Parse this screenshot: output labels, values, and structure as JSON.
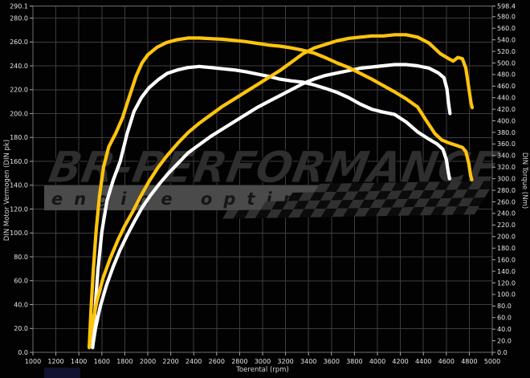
{
  "watermark": {
    "line1": "BR-PERFORMANCE",
    "line2": "engine optimisation"
  },
  "colors": {
    "background": "#020202",
    "plot_background": "#000000",
    "gridline": "#3d3d3d",
    "plot_border": "#6e6e6e",
    "tick_text": "#e6e6e6",
    "curve_tuned": "#FFC40D",
    "curve_stock": "#FFFFFF",
    "watermark_text": "#2e2e2e",
    "watermark_band": "#4a4a4a",
    "checker_light": "#303030",
    "checker_dark": "#0b0b0b",
    "artifact_blue": "#141438"
  },
  "chart_data": {
    "type": "line",
    "title": "",
    "xlabel": "Toerental (rpm)",
    "ylabel_left": "DIN Motor Vermogen (DIN pk)",
    "ylabel_right": "DIN Torque (Nm)",
    "grid": true,
    "legend": "none",
    "x_range": [
      1000,
      5000
    ],
    "y_left_range": [
      0,
      290.1
    ],
    "y_right_range": [
      0,
      598.4
    ],
    "x_ticks": [
      "1000",
      "1200",
      "1400",
      "1600",
      "1800",
      "2000",
      "2200",
      "2400",
      "2600",
      "2800",
      "3000",
      "3200",
      "3400",
      "3600",
      "3800",
      "4000",
      "4200",
      "4400",
      "4600",
      "4800",
      "5000"
    ],
    "y_left_ticks": [
      "0.0",
      "20.0",
      "40.0",
      "60.0",
      "80.0",
      "100.0",
      "120.0",
      "140.0",
      "160.0",
      "180.0",
      "200.0",
      "220.0",
      "240.0",
      "260.0",
      "280.0",
      "290.1"
    ],
    "y_right_ticks": [
      "0.0",
      "20.0",
      "40.0",
      "60.0",
      "80.0",
      "100.0",
      "120.0",
      "140.0",
      "160.0",
      "180.0",
      "200.0",
      "220.0",
      "240.0",
      "260.0",
      "280.0",
      "300.0",
      "320.0",
      "340.0",
      "360.0",
      "380.0",
      "400.0",
      "420.0",
      "440.0",
      "460.0",
      "480.0",
      "500.0",
      "520.0",
      "540.0",
      "560.0",
      "580.0",
      "598.4"
    ],
    "series": [
      {
        "name": "torque-stock-white",
        "axis": "right",
        "color": "#FFFFFF",
        "points": [
          [
            1520,
            8
          ],
          [
            1540,
            70
          ],
          [
            1565,
            140
          ],
          [
            1600,
            208
          ],
          [
            1645,
            262
          ],
          [
            1700,
            298
          ],
          [
            1760,
            330
          ],
          [
            1820,
            378
          ],
          [
            1880,
            416
          ],
          [
            1945,
            440
          ],
          [
            2010,
            457
          ],
          [
            2090,
            471
          ],
          [
            2170,
            482
          ],
          [
            2260,
            488
          ],
          [
            2350,
            492
          ],
          [
            2450,
            494
          ],
          [
            2550,
            492
          ],
          [
            2650,
            490
          ],
          [
            2750,
            488
          ],
          [
            2850,
            485
          ],
          [
            2950,
            481
          ],
          [
            3050,
            477
          ],
          [
            3150,
            472
          ],
          [
            3250,
            469
          ],
          [
            3350,
            467
          ],
          [
            3450,
            462
          ],
          [
            3550,
            456
          ],
          [
            3650,
            449
          ],
          [
            3750,
            440
          ],
          [
            3850,
            429
          ],
          [
            3950,
            420
          ],
          [
            4050,
            415
          ],
          [
            4150,
            411
          ],
          [
            4250,
            398
          ],
          [
            4350,
            381
          ],
          [
            4450,
            368
          ],
          [
            4520,
            360
          ],
          [
            4570,
            351
          ],
          [
            4600,
            333
          ],
          [
            4618,
            310
          ],
          [
            4628,
            300
          ]
        ]
      },
      {
        "name": "power-stock-white",
        "axis": "left",
        "color": "#FFFFFF",
        "points": [
          [
            1520,
            5
          ],
          [
            1545,
            20
          ],
          [
            1585,
            38
          ],
          [
            1640,
            56
          ],
          [
            1700,
            72
          ],
          [
            1760,
            86
          ],
          [
            1820,
            98
          ],
          [
            1880,
            109
          ],
          [
            1950,
            121
          ],
          [
            2020,
            131
          ],
          [
            2100,
            141
          ],
          [
            2180,
            150
          ],
          [
            2260,
            158
          ],
          [
            2350,
            167
          ],
          [
            2450,
            174
          ],
          [
            2550,
            181
          ],
          [
            2650,
            187
          ],
          [
            2750,
            193
          ],
          [
            2850,
            199
          ],
          [
            2950,
            205
          ],
          [
            3050,
            210
          ],
          [
            3150,
            215
          ],
          [
            3250,
            220
          ],
          [
            3350,
            225
          ],
          [
            3450,
            229
          ],
          [
            3550,
            232
          ],
          [
            3650,
            234
          ],
          [
            3750,
            236
          ],
          [
            3850,
            238
          ],
          [
            3950,
            239
          ],
          [
            4050,
            240
          ],
          [
            4150,
            241
          ],
          [
            4250,
            241
          ],
          [
            4350,
            240
          ],
          [
            4450,
            238
          ],
          [
            4530,
            234
          ],
          [
            4580,
            230
          ],
          [
            4605,
            221
          ],
          [
            4620,
            208
          ],
          [
            4632,
            200
          ]
        ]
      },
      {
        "name": "torque-tuned-yellow",
        "axis": "right",
        "color": "#FFC40D",
        "points": [
          [
            1490,
            8
          ],
          [
            1505,
            70
          ],
          [
            1525,
            140
          ],
          [
            1550,
            210
          ],
          [
            1580,
            270
          ],
          [
            1615,
            320
          ],
          [
            1660,
            355
          ],
          [
            1720,
            378
          ],
          [
            1780,
            405
          ],
          [
            1840,
            442
          ],
          [
            1900,
            478
          ],
          [
            1950,
            500
          ],
          [
            2000,
            514
          ],
          [
            2080,
            527
          ],
          [
            2160,
            535
          ],
          [
            2250,
            540
          ],
          [
            2350,
            543
          ],
          [
            2450,
            543
          ],
          [
            2550,
            542
          ],
          [
            2650,
            541
          ],
          [
            2750,
            539
          ],
          [
            2850,
            537
          ],
          [
            2950,
            534
          ],
          [
            3050,
            531
          ],
          [
            3150,
            529
          ],
          [
            3250,
            526
          ],
          [
            3350,
            522
          ],
          [
            3450,
            517
          ],
          [
            3550,
            509
          ],
          [
            3650,
            500
          ],
          [
            3750,
            492
          ],
          [
            3850,
            482
          ],
          [
            3950,
            472
          ],
          [
            4050,
            461
          ],
          [
            4150,
            450
          ],
          [
            4250,
            438
          ],
          [
            4350,
            424
          ],
          [
            4420,
            402
          ],
          [
            4500,
            378
          ],
          [
            4560,
            367
          ],
          [
            4620,
            362
          ],
          [
            4680,
            358
          ],
          [
            4740,
            354
          ],
          [
            4770,
            347
          ],
          [
            4795,
            327
          ],
          [
            4812,
            305
          ],
          [
            4822,
            298
          ]
        ]
      },
      {
        "name": "power-tuned-yellow",
        "axis": "left",
        "color": "#FFC40D",
        "points": [
          [
            1490,
            5
          ],
          [
            1515,
            22
          ],
          [
            1555,
            42
          ],
          [
            1610,
            62
          ],
          [
            1670,
            78
          ],
          [
            1740,
            94
          ],
          [
            1800,
            106
          ],
          [
            1870,
            118
          ],
          [
            1940,
            131
          ],
          [
            2010,
            143
          ],
          [
            2090,
            155
          ],
          [
            2170,
            165
          ],
          [
            2260,
            175
          ],
          [
            2350,
            184
          ],
          [
            2450,
            192
          ],
          [
            2550,
            199
          ],
          [
            2650,
            206
          ],
          [
            2750,
            212
          ],
          [
            2850,
            218
          ],
          [
            2950,
            224
          ],
          [
            3050,
            230
          ],
          [
            3150,
            236
          ],
          [
            3250,
            243
          ],
          [
            3350,
            250
          ],
          [
            3450,
            255
          ],
          [
            3550,
            258
          ],
          [
            3650,
            261
          ],
          [
            3750,
            263
          ],
          [
            3850,
            264
          ],
          [
            3950,
            265
          ],
          [
            4050,
            265
          ],
          [
            4150,
            266
          ],
          [
            4250,
            266
          ],
          [
            4350,
            264
          ],
          [
            4450,
            259
          ],
          [
            4550,
            250
          ],
          [
            4620,
            246
          ],
          [
            4660,
            244
          ],
          [
            4700,
            247
          ],
          [
            4740,
            246
          ],
          [
            4770,
            238
          ],
          [
            4795,
            222
          ],
          [
            4815,
            209
          ],
          [
            4825,
            205
          ]
        ]
      }
    ]
  }
}
